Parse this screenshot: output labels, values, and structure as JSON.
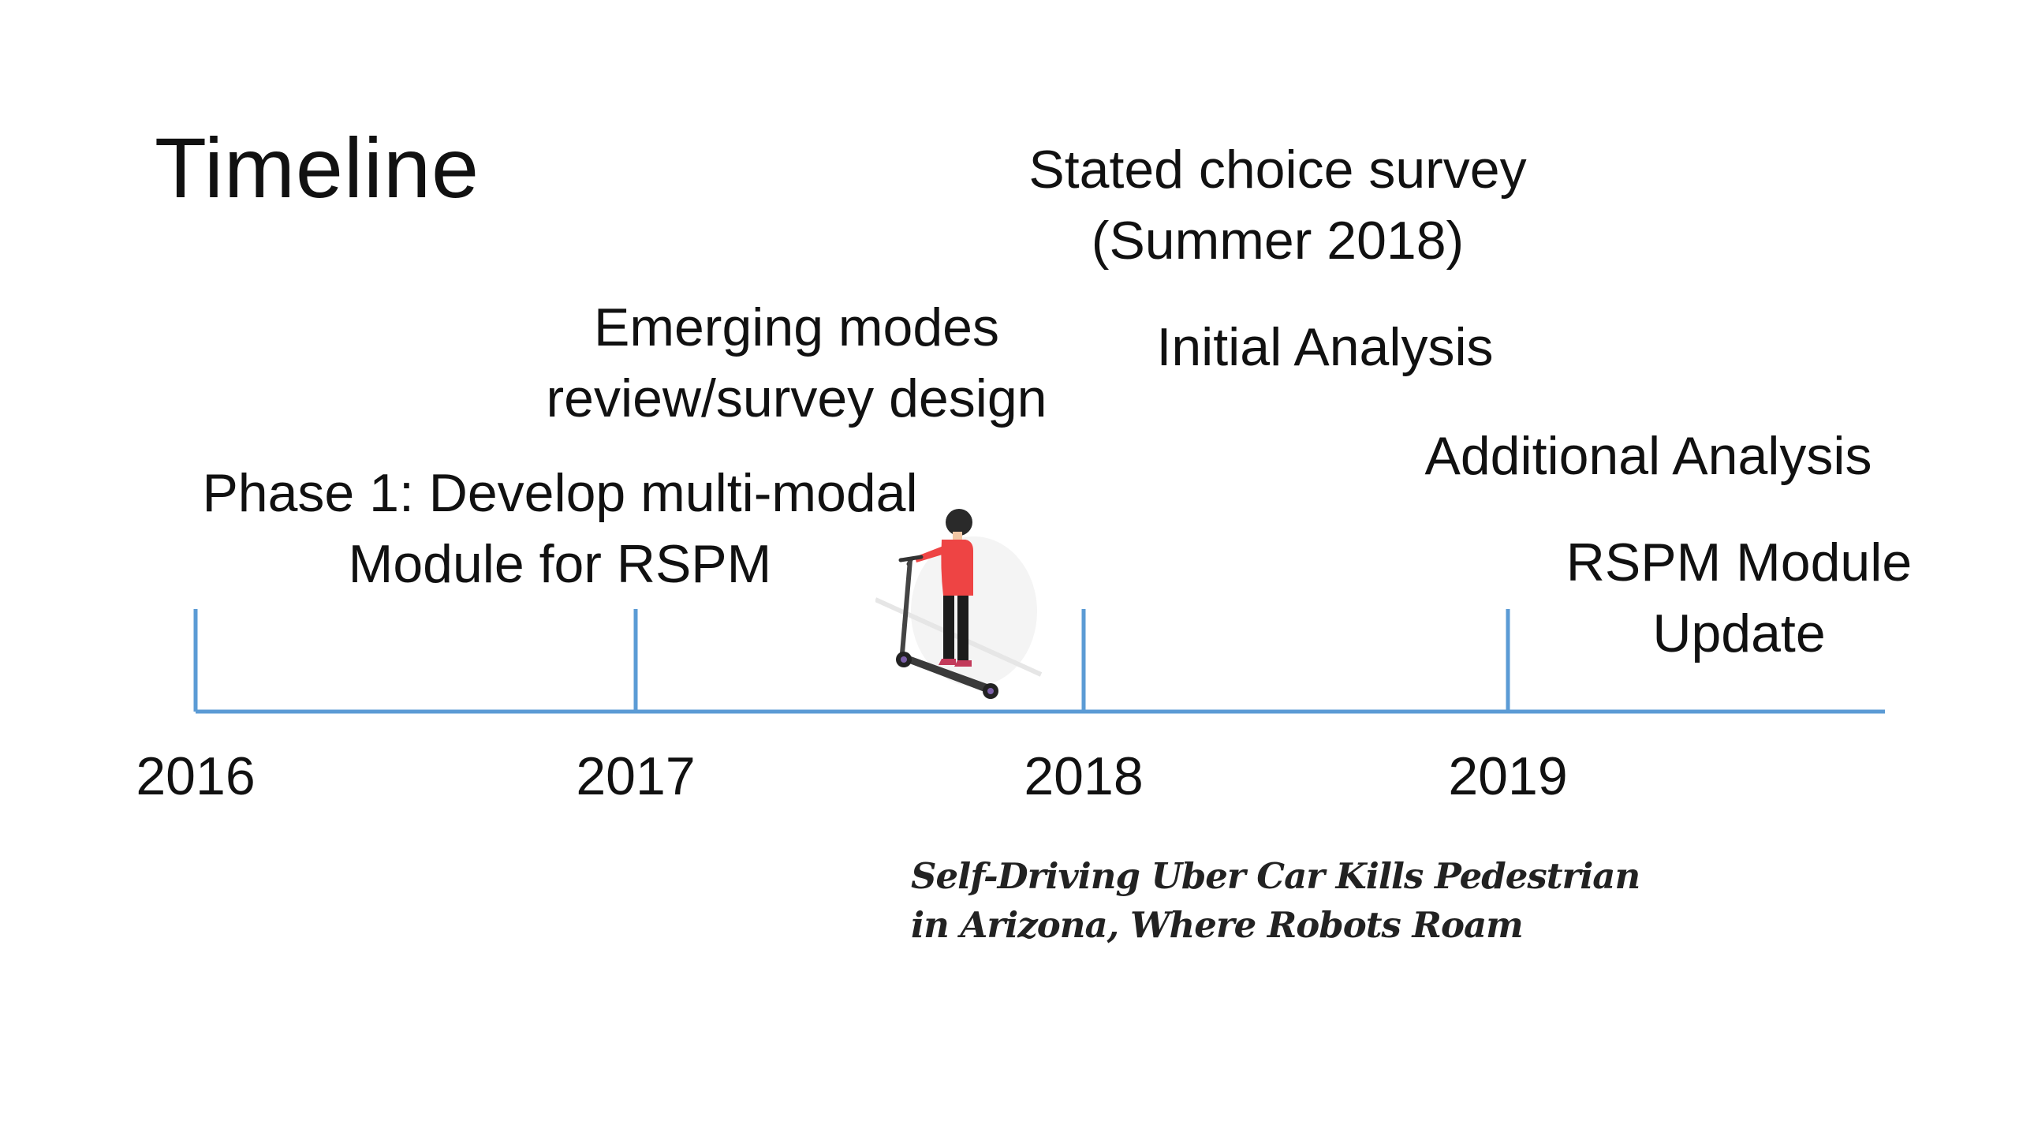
{
  "slide": {
    "title": "Timeline"
  },
  "timeline": {
    "axis_color": "#5b9bd5",
    "years": [
      "2016",
      "2017",
      "2018",
      "2019"
    ],
    "events": [
      {
        "lines": [
          "Phase 1: Develop multi-modal",
          "Module for RSPM"
        ]
      },
      {
        "lines": [
          "Emerging modes",
          "review/survey design"
        ]
      },
      {
        "lines": [
          "Stated choice survey",
          "(Summer 2018)"
        ]
      },
      {
        "lines": [
          "Initial Analysis"
        ]
      },
      {
        "lines": [
          "Additional Analysis"
        ]
      },
      {
        "lines": [
          "RSPM Module",
          "Update"
        ]
      }
    ]
  },
  "news": {
    "headline_lines": [
      "Self-Driving Uber Car Kills Pedestrian",
      "in Arizona, Where Robots Roam"
    ]
  },
  "illustration": {
    "icon": "scooter-rider-icon",
    "shirt_color": "#ee4444",
    "hair_color": "#2a2a2a"
  }
}
